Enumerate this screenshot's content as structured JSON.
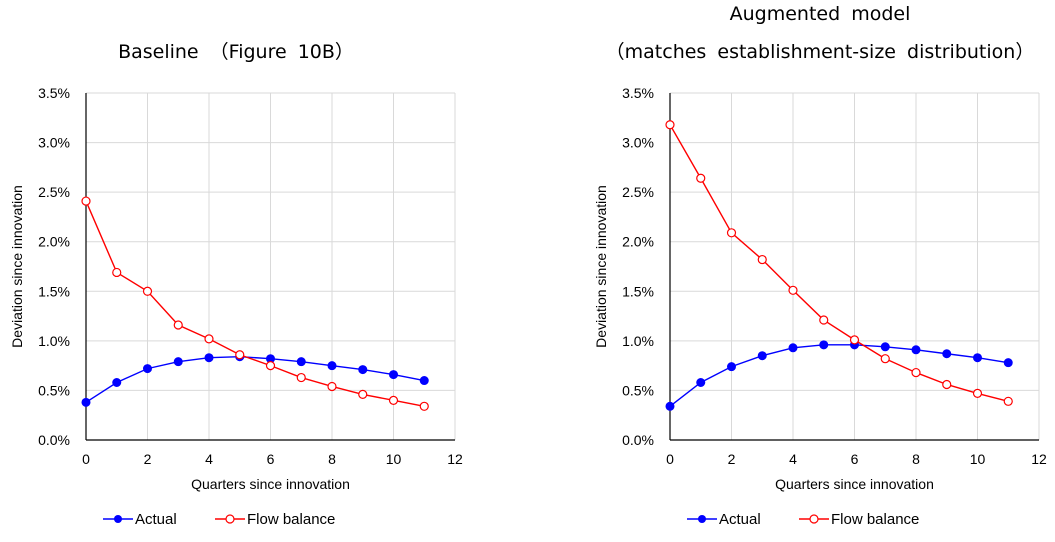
{
  "chart_data": [
    {
      "type": "line",
      "title_lines": [
        "Baseline （Figure 10B）"
      ],
      "xlabel": "Quarters since innovation",
      "ylabel": "Deviation since innovation",
      "xlim": [
        0,
        12
      ],
      "ylim": [
        0,
        0.035
      ],
      "x_ticks": [
        "0",
        "2",
        "4",
        "6",
        "8",
        "10",
        "12"
      ],
      "y_ticks": [
        "0.0%",
        "0.5%",
        "1.0%",
        "1.5%",
        "2.0%",
        "2.5%",
        "3.0%",
        "3.5%"
      ],
      "grid": true,
      "legend_position": "bottom",
      "x": [
        0,
        1,
        2,
        3,
        4,
        5,
        6,
        7,
        8,
        9,
        10,
        11
      ],
      "series": [
        {
          "name": "Actual",
          "color": "#0000ff",
          "marker": "filled-circle",
          "values": [
            0.0038,
            0.0058,
            0.0072,
            0.0079,
            0.0083,
            0.0084,
            0.0082,
            0.0079,
            0.0075,
            0.0071,
            0.0066,
            0.006
          ]
        },
        {
          "name": "Flow balance",
          "color": "#ff0000",
          "marker": "open-circle",
          "values": [
            0.0241,
            0.0169,
            0.015,
            0.0116,
            0.0102,
            0.0086,
            0.0075,
            0.0063,
            0.0054,
            0.0046,
            0.004,
            0.0034
          ]
        }
      ]
    },
    {
      "type": "line",
      "title_lines": [
        "Augmented model",
        "（matches establishment-size distribution）"
      ],
      "xlabel": "Quarters since innovation",
      "ylabel": "Deviation since innovation",
      "xlim": [
        0,
        12
      ],
      "ylim": [
        0,
        0.035
      ],
      "x_ticks": [
        "0",
        "2",
        "4",
        "6",
        "8",
        "10",
        "12"
      ],
      "y_ticks": [
        "0.0%",
        "0.5%",
        "1.0%",
        "1.5%",
        "2.0%",
        "2.5%",
        "3.0%",
        "3.5%"
      ],
      "grid": true,
      "legend_position": "bottom",
      "x": [
        0,
        1,
        2,
        3,
        4,
        5,
        6,
        7,
        8,
        9,
        10,
        11
      ],
      "series": [
        {
          "name": "Actual",
          "color": "#0000ff",
          "marker": "filled-circle",
          "values": [
            0.0034,
            0.0058,
            0.0074,
            0.0085,
            0.0093,
            0.0096,
            0.0096,
            0.0094,
            0.0091,
            0.0087,
            0.0083,
            0.0078
          ]
        },
        {
          "name": "Flow balance",
          "color": "#ff0000",
          "marker": "open-circle",
          "values": [
            0.0318,
            0.0264,
            0.0209,
            0.0182,
            0.0151,
            0.0121,
            0.0101,
            0.0082,
            0.0068,
            0.0056,
            0.0047,
            0.0039
          ]
        }
      ]
    }
  ]
}
